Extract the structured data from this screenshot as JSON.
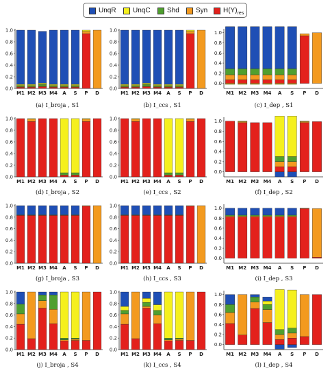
{
  "legend": [
    {
      "key": "UnqR",
      "label": "UnqR",
      "sub": "",
      "color": "#1f4fb5"
    },
    {
      "key": "UnqC",
      "label": "UnqC",
      "sub": "",
      "color": "#f5f01e"
    },
    {
      "key": "Shd",
      "label": "Shd",
      "sub": "",
      "color": "#4f9f2f"
    },
    {
      "key": "Syn",
      "label": "Syn",
      "sub": "",
      "color": "#f39a1f"
    },
    {
      "key": "Hres",
      "label": "H(Y)",
      "sub": "res",
      "color": "#e3211c"
    }
  ],
  "chart_data": [
    {
      "type": "bar",
      "stacked": true,
      "caption": "(a) I_broja , S1",
      "ylim": [
        0,
        1.0
      ],
      "yticks": [
        "0.0",
        "0.2",
        "0.4",
        "0.6",
        "0.8",
        "1.0"
      ],
      "categories": [
        "M1",
        "M2",
        "M3",
        "M4",
        "A",
        "S",
        "P",
        "D"
      ],
      "series": [
        {
          "name": "Hres",
          "values": [
            0.02,
            0.02,
            0.03,
            0.02,
            0.02,
            0.02,
            0.94,
            0
          ]
        },
        {
          "name": "Syn",
          "values": [
            0.01,
            0.01,
            0.01,
            0.01,
            0.01,
            0.01,
            0.04,
            1.0
          ]
        },
        {
          "name": "Shd",
          "values": [
            0.02,
            0.02,
            0.03,
            0.02,
            0.02,
            0.02,
            0,
            0
          ]
        },
        {
          "name": "UnqC",
          "values": [
            0.02,
            0.02,
            0.02,
            0.02,
            0.02,
            0.02,
            0.02,
            0
          ]
        },
        {
          "name": "UnqR",
          "values": [
            0.93,
            0.93,
            0.89,
            0.93,
            0.93,
            0.93,
            0,
            0
          ]
        }
      ]
    },
    {
      "type": "bar",
      "stacked": true,
      "caption": "(b) I_ccs , S1",
      "ylim": [
        0,
        1.0
      ],
      "yticks": [
        "0.0",
        "0.2",
        "0.4",
        "0.6",
        "0.8",
        "1.0"
      ],
      "categories": [
        "M1",
        "M2",
        "M3",
        "M4",
        "A",
        "S",
        "P",
        "D"
      ],
      "series": [
        {
          "name": "Hres",
          "values": [
            0.02,
            0.02,
            0.03,
            0.02,
            0.02,
            0.02,
            0.94,
            0
          ]
        },
        {
          "name": "Syn",
          "values": [
            0.01,
            0.01,
            0.01,
            0.01,
            0.01,
            0.01,
            0.04,
            1.0
          ]
        },
        {
          "name": "Shd",
          "values": [
            0.02,
            0.02,
            0.03,
            0.02,
            0.02,
            0.02,
            0,
            0
          ]
        },
        {
          "name": "UnqC",
          "values": [
            0.02,
            0.02,
            0.02,
            0.02,
            0.02,
            0.02,
            0.02,
            0
          ]
        },
        {
          "name": "UnqR",
          "values": [
            0.93,
            0.93,
            0.91,
            0.93,
            0.93,
            0.93,
            0,
            0
          ]
        }
      ]
    },
    {
      "type": "bar",
      "stacked": true,
      "caption": "(c) I_dep , S1",
      "ylim": [
        -0.1,
        1.05
      ],
      "yticks": [
        "0.0",
        "0.2",
        "0.4",
        "0.6",
        "0.8",
        "1.0"
      ],
      "categories": [
        "M1",
        "M2",
        "M3",
        "M4",
        "A",
        "S",
        "P",
        "D"
      ],
      "series": [
        {
          "name": "UnqC",
          "values": [
            -0.02,
            -0.02,
            -0.02,
            -0.02,
            -0.02,
            -0.02,
            0,
            0
          ]
        },
        {
          "name": "Hres",
          "values": [
            0.07,
            0.07,
            0.07,
            0.07,
            0.07,
            0.07,
            0.94,
            0
          ]
        },
        {
          "name": "Syn",
          "values": [
            0.1,
            0.1,
            0.1,
            0.1,
            0.1,
            0.1,
            0.04,
            1.0
          ]
        },
        {
          "name": "Shd",
          "values": [
            0.12,
            0.12,
            0.12,
            0.12,
            0.12,
            0.12,
            0,
            0
          ]
        },
        {
          "name": "UnqR",
          "values": [
            0.83,
            0.83,
            0.83,
            0.83,
            0.83,
            0.83,
            0,
            0
          ]
        }
      ]
    },
    {
      "type": "bar",
      "stacked": true,
      "caption": "(d) I_broja , S2",
      "ylim": [
        0,
        1.0
      ],
      "yticks": [
        "0.0",
        "0.2",
        "0.4",
        "0.6",
        "0.8",
        "1.0"
      ],
      "categories": [
        "M1",
        "M2",
        "M3",
        "M4",
        "A",
        "S",
        "P",
        "D"
      ],
      "series": [
        {
          "name": "Hres",
          "values": [
            1.0,
            0.95,
            1.0,
            1.0,
            0.03,
            0.03,
            0.95,
            1.0
          ]
        },
        {
          "name": "Shd",
          "values": [
            0,
            0,
            0,
            0,
            0.04,
            0.04,
            0,
            0
          ]
        },
        {
          "name": "Syn",
          "values": [
            0,
            0.04,
            0,
            0,
            0,
            0,
            0.04,
            0
          ]
        },
        {
          "name": "UnqC",
          "values": [
            0,
            0.01,
            0,
            0,
            0.93,
            0.93,
            0.01,
            0
          ]
        }
      ]
    },
    {
      "type": "bar",
      "stacked": true,
      "caption": "(e) I_ccs , S2",
      "ylim": [
        0,
        1.0
      ],
      "yticks": [
        "0.0",
        "0.2",
        "0.4",
        "0.6",
        "0.8",
        "1.0"
      ],
      "categories": [
        "M1",
        "M2",
        "M3",
        "M4",
        "A",
        "S",
        "P",
        "D"
      ],
      "series": [
        {
          "name": "Hres",
          "values": [
            1.0,
            0.95,
            1.0,
            1.0,
            0.03,
            0.03,
            0.95,
            1.0
          ]
        },
        {
          "name": "Shd",
          "values": [
            0,
            0,
            0,
            0,
            0.04,
            0.04,
            0,
            0
          ]
        },
        {
          "name": "Syn",
          "values": [
            0,
            0.04,
            0,
            0,
            0,
            0,
            0.04,
            0
          ]
        },
        {
          "name": "UnqC",
          "values": [
            0,
            0.01,
            0,
            0,
            0.93,
            0.93,
            0.01,
            0
          ]
        }
      ]
    },
    {
      "type": "bar",
      "stacked": true,
      "caption": "(f) I_dep , S2",
      "ylim": [
        -0.1,
        1.05
      ],
      "yticks": [
        "0.0",
        "0.2",
        "0.4",
        "0.6",
        "0.8",
        "1.0"
      ],
      "categories": [
        "M1",
        "M2",
        "M3",
        "M4",
        "A",
        "S",
        "P",
        "D"
      ],
      "series": [
        {
          "name": "UnqR",
          "values": [
            0,
            0,
            0,
            0,
            -0.1,
            -0.1,
            0,
            0
          ]
        },
        {
          "name": "Hres",
          "values": [
            1.0,
            0.97,
            0.97,
            0.97,
            0.1,
            0.1,
            0.97,
            0.99
          ]
        },
        {
          "name": "Syn",
          "values": [
            0,
            0.02,
            0,
            0,
            0.1,
            0.1,
            0.02,
            0
          ]
        },
        {
          "name": "Shd",
          "values": [
            0,
            0,
            0,
            0,
            0.1,
            0.1,
            0,
            0
          ]
        },
        {
          "name": "UnqC",
          "values": [
            0,
            0.01,
            0,
            0,
            0.8,
            0.8,
            0.01,
            0
          ]
        }
      ]
    },
    {
      "type": "bar",
      "stacked": true,
      "caption": "(g) I_broja , S3",
      "ylim": [
        0,
        1.0
      ],
      "yticks": [
        "0.0",
        "0.2",
        "0.4",
        "0.6",
        "0.8",
        "1.0"
      ],
      "categories": [
        "M1",
        "M2",
        "M3",
        "M4",
        "A",
        "S",
        "P",
        "D"
      ],
      "series": [
        {
          "name": "Hres",
          "values": [
            0.83,
            0.83,
            0.83,
            0.83,
            0.83,
            0.83,
            0.99,
            0
          ]
        },
        {
          "name": "Syn",
          "values": [
            0,
            0,
            0,
            0,
            0,
            0,
            0.01,
            1.0
          ]
        },
        {
          "name": "Shd",
          "values": [
            0.01,
            0.01,
            0.01,
            0.01,
            0.01,
            0.01,
            0,
            0
          ]
        },
        {
          "name": "UnqR",
          "values": [
            0.16,
            0.16,
            0.16,
            0.16,
            0.16,
            0.16,
            0,
            0
          ]
        }
      ]
    },
    {
      "type": "bar",
      "stacked": true,
      "caption": "(h) I_ccs , S3",
      "ylim": [
        0,
        1.0
      ],
      "yticks": [
        "0.0",
        "0.2",
        "0.4",
        "0.6",
        "0.8",
        "1.0"
      ],
      "categories": [
        "M1",
        "M2",
        "M3",
        "M4",
        "A",
        "S",
        "P",
        "D"
      ],
      "series": [
        {
          "name": "Hres",
          "values": [
            0.83,
            0.83,
            0.83,
            0.83,
            0.83,
            0.83,
            0.99,
            0
          ]
        },
        {
          "name": "Syn",
          "values": [
            0,
            0,
            0,
            0,
            0,
            0,
            0.01,
            1.0
          ]
        },
        {
          "name": "Shd",
          "values": [
            0.01,
            0.01,
            0.01,
            0.01,
            0.01,
            0.01,
            0,
            0
          ]
        },
        {
          "name": "UnqR",
          "values": [
            0.16,
            0.16,
            0.16,
            0.16,
            0.16,
            0.16,
            0,
            0
          ]
        }
      ]
    },
    {
      "type": "bar",
      "stacked": true,
      "caption": "(i) I_dep , S3",
      "ylim": [
        -0.1,
        1.05
      ],
      "yticks": [
        "0.0",
        "0.2",
        "0.4",
        "0.6",
        "0.8",
        "1.0"
      ],
      "categories": [
        "M1",
        "M2",
        "M3",
        "M4",
        "A",
        "S",
        "P",
        "D"
      ],
      "series": [
        {
          "name": "Hres",
          "values": [
            0.82,
            0.82,
            0.82,
            0.82,
            0.82,
            0.82,
            0.99,
            0.02
          ]
        },
        {
          "name": "Syn",
          "values": [
            0.02,
            0.02,
            0.02,
            0.02,
            0.02,
            0.02,
            0.01,
            0.97
          ]
        },
        {
          "name": "Shd",
          "values": [
            0.02,
            0.02,
            0.02,
            0.02,
            0.02,
            0.02,
            0,
            0
          ]
        },
        {
          "name": "UnqR",
          "values": [
            0.14,
            0.14,
            0.14,
            0.14,
            0.14,
            0.14,
            0,
            0
          ]
        }
      ]
    },
    {
      "type": "bar",
      "stacked": true,
      "caption": "(j) I_broja , S4",
      "ylim": [
        0,
        1.0
      ],
      "yticks": [
        "0.0",
        "0.2",
        "0.4",
        "0.6",
        "0.8",
        "1.0"
      ],
      "categories": [
        "M1",
        "M2",
        "M3",
        "M4",
        "A",
        "S",
        "P",
        "D"
      ],
      "series": [
        {
          "name": "Hres",
          "values": [
            0.44,
            0.19,
            0.72,
            0.45,
            0.15,
            0.16,
            0.16,
            1.0
          ]
        },
        {
          "name": "Syn",
          "values": [
            0.18,
            0.81,
            0.13,
            0.25,
            0.02,
            0.02,
            0.84,
            0
          ]
        },
        {
          "name": "Shd",
          "values": [
            0.17,
            0,
            0.1,
            0.25,
            0.03,
            0.02,
            0,
            0
          ]
        },
        {
          "name": "UnqC",
          "values": [
            0,
            0,
            0,
            0,
            0.8,
            0.8,
            0,
            0
          ]
        },
        {
          "name": "UnqR",
          "values": [
            0.21,
            0,
            0.05,
            0.05,
            0,
            0,
            0,
            0
          ]
        }
      ]
    },
    {
      "type": "bar",
      "stacked": true,
      "caption": "(k) I_ccs , S4",
      "ylim": [
        0,
        1.0
      ],
      "yticks": [
        "0.0",
        "0.2",
        "0.4",
        "0.6",
        "0.8",
        "1.0"
      ],
      "categories": [
        "M1",
        "M2",
        "M3",
        "M4",
        "A",
        "S",
        "P",
        "D"
      ],
      "series": [
        {
          "name": "Hres",
          "values": [
            0.44,
            0.19,
            0.72,
            0.45,
            0.15,
            0.16,
            0.16,
            1.0
          ]
        },
        {
          "name": "Syn",
          "values": [
            0.18,
            0.81,
            0.03,
            0.15,
            0.02,
            0.02,
            0.84,
            0
          ]
        },
        {
          "name": "Shd",
          "values": [
            0.06,
            0,
            0.07,
            0.08,
            0.03,
            0.02,
            0,
            0
          ]
        },
        {
          "name": "UnqC",
          "values": [
            0.07,
            0,
            0.07,
            0.1,
            0.8,
            0.8,
            0,
            0
          ]
        },
        {
          "name": "UnqR",
          "values": [
            0.25,
            0,
            0.11,
            0.22,
            0,
            0,
            0,
            0
          ]
        }
      ]
    },
    {
      "type": "bar",
      "stacked": true,
      "caption": "(l) I_dep , S4",
      "ylim": [
        -0.1,
        1.05
      ],
      "yticks": [
        "0.0",
        "0.2",
        "0.4",
        "0.6",
        "0.8",
        "1.0"
      ],
      "categories": [
        "M1",
        "M2",
        "M3",
        "M4",
        "A",
        "S",
        "P",
        "D"
      ],
      "series": [
        {
          "name": "UnqR",
          "values": [
            0,
            0,
            0,
            0,
            -0.09,
            -0.06,
            0,
            0
          ]
        },
        {
          "name": "Hres",
          "values": [
            0.42,
            0.19,
            0.72,
            0.44,
            0.1,
            0.13,
            0.16,
            1.0
          ]
        },
        {
          "name": "Syn",
          "values": [
            0.22,
            0.81,
            0.13,
            0.26,
            0.1,
            0.1,
            0.84,
            0
          ]
        },
        {
          "name": "Shd",
          "values": [
            0.16,
            0,
            0.1,
            0.1,
            0.1,
            0.1,
            0,
            0
          ]
        },
        {
          "name": "UnqC",
          "values": [
            0,
            0,
            0,
            0.07,
            0.8,
            0.76,
            0,
            0
          ]
        },
        {
          "name": "UnqR",
          "values": [
            0.2,
            0,
            0.05,
            0.08,
            0,
            0,
            0,
            0
          ]
        }
      ]
    }
  ]
}
